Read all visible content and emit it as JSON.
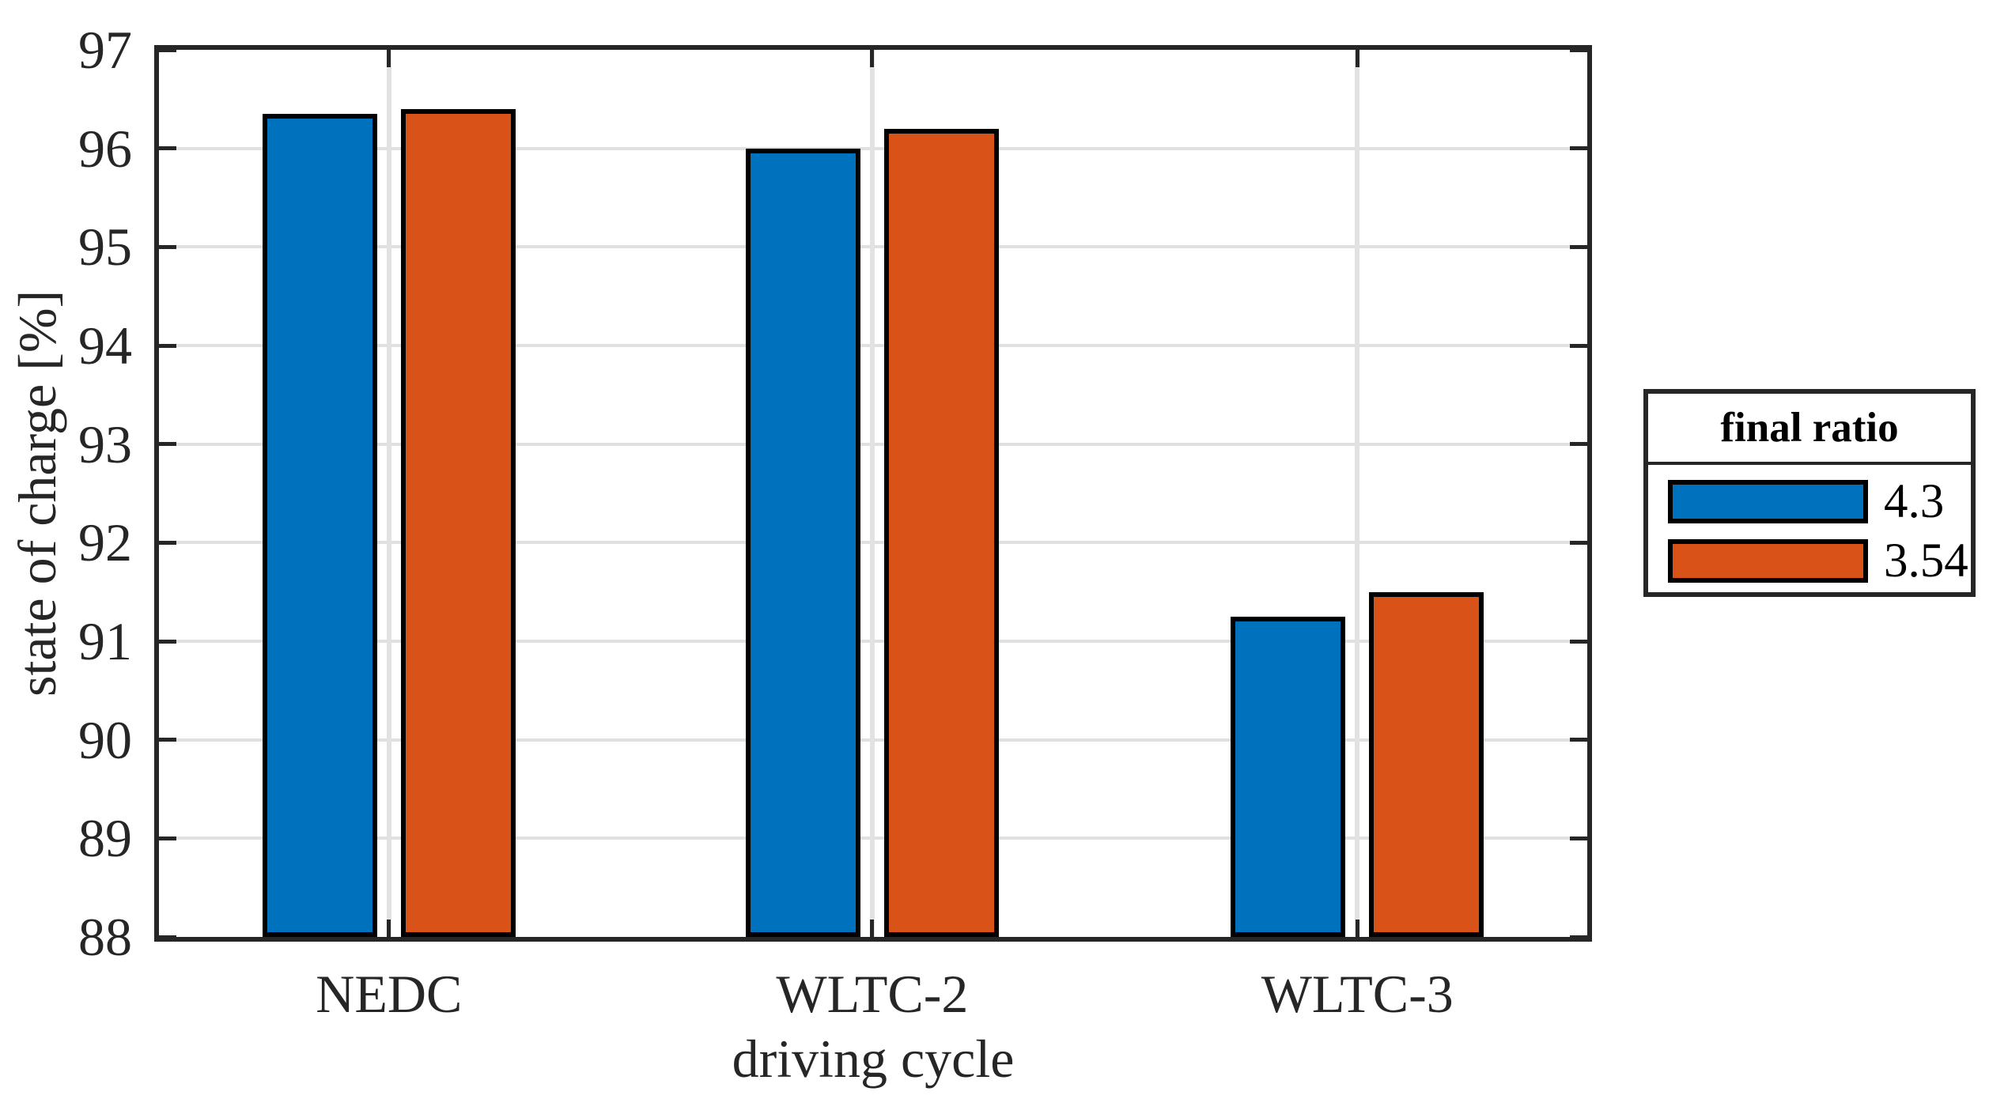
{
  "chart_data": {
    "type": "bar",
    "title": "",
    "xlabel": "driving cycle",
    "ylabel": "state of charge [%]",
    "categories": [
      "NEDC",
      "WLTC-2",
      "WLTC-3"
    ],
    "series": [
      {
        "name": "4.3",
        "color": "#0072BD",
        "values": [
          96.35,
          96.0,
          91.25
        ]
      },
      {
        "name": "3.54",
        "color": "#D95319",
        "values": [
          96.4,
          96.2,
          91.5
        ]
      }
    ],
    "ylim": [
      88,
      97
    ],
    "yticks": [
      88,
      89,
      90,
      91,
      92,
      93,
      94,
      95,
      96,
      97
    ],
    "grid": true,
    "legend_title": "final ratio",
    "legend_position": "right-outside",
    "bar_edge_color": "#000000",
    "axis_color": "#262626",
    "grid_color": "#e0e0e0"
  }
}
